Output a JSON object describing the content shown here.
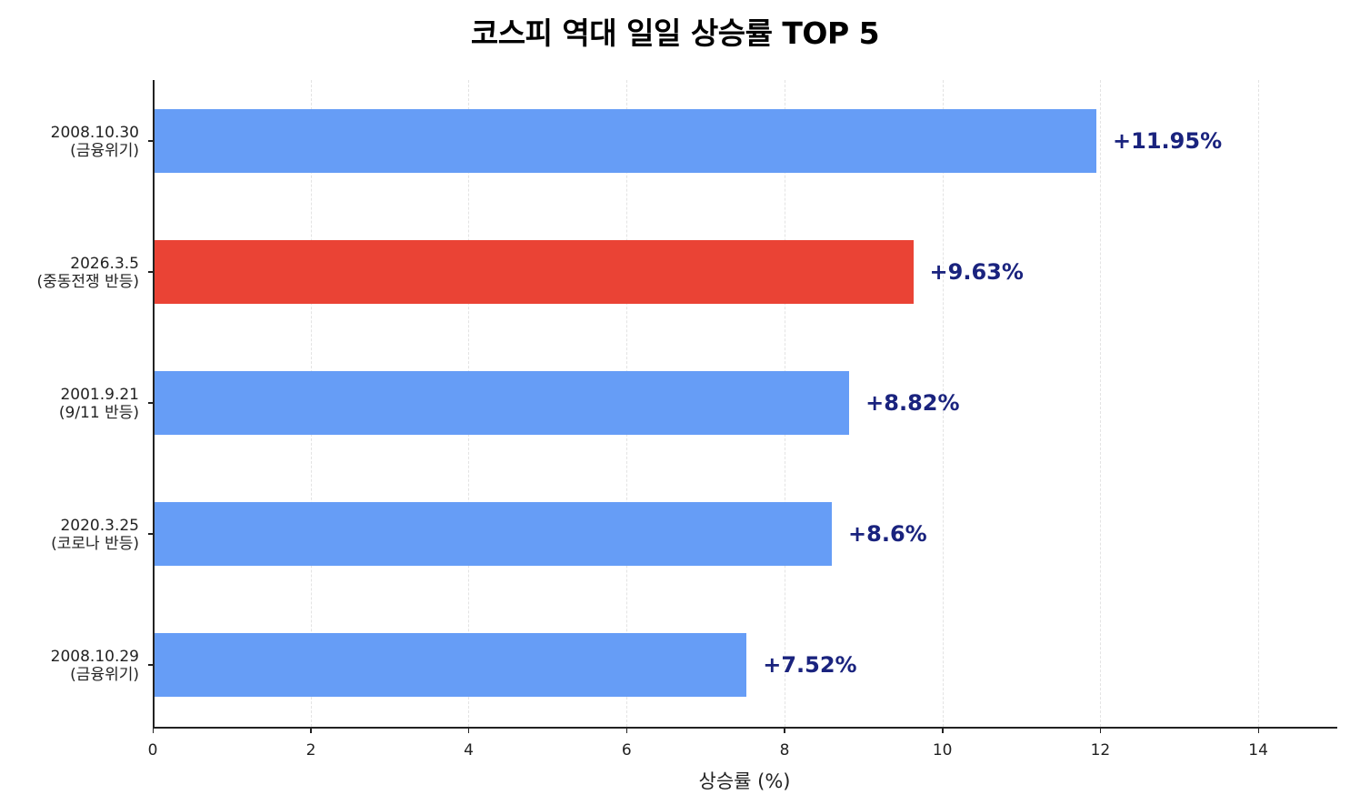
{
  "chart_data": {
    "type": "bar",
    "orientation": "horizontal",
    "title": "코스피 역대 일일 상승률 TOP 5",
    "xlabel": "상승률 (%)",
    "ylabel": "",
    "xlim": [
      0,
      15
    ],
    "xticks": [
      0,
      2,
      4,
      6,
      8,
      10,
      12,
      14
    ],
    "grid": {
      "x": true,
      "y": false,
      "style": "dashed"
    },
    "categories": [
      "2008.10.30\n(금융위기)",
      "2026.3.5\n(중동전쟁 반등)",
      "2001.9.21\n(9/11 반등)",
      "2020.3.25\n(코로나 반등)",
      "2008.10.29\n(금융위기)"
    ],
    "values": [
      11.95,
      9.63,
      8.82,
      8.6,
      7.52
    ],
    "data_labels": [
      "+11.95%",
      "+9.63%",
      "+8.82%",
      "+8.6%",
      "+7.52%"
    ],
    "colors": [
      "#669df6",
      "#ea4335",
      "#669df6",
      "#669df6",
      "#669df6"
    ],
    "highlight_index": 1,
    "label_color": "#1a237e"
  },
  "title": "코스피 역대 일일 상승률 TOP 5",
  "xaxis": {
    "label": "상승률 (%)",
    "ticks": [
      "0",
      "2",
      "4",
      "6",
      "8",
      "10",
      "12",
      "14"
    ]
  },
  "bars": [
    {
      "date": "2008.10.30",
      "event": "(금융위기)",
      "value": 11.95,
      "label": "+11.95%",
      "color": "#669df6"
    },
    {
      "date": "2026.3.5",
      "event": "(중동전쟁 반등)",
      "value": 9.63,
      "label": "+9.63%",
      "color": "#ea4335"
    },
    {
      "date": "2001.9.21",
      "event": "(9/11 반등)",
      "value": 8.82,
      "label": "+8.82%",
      "color": "#669df6"
    },
    {
      "date": "2020.3.25",
      "event": "(코로나 반등)",
      "value": 8.6,
      "label": "+8.6%",
      "color": "#669df6"
    },
    {
      "date": "2008.10.29",
      "event": "(금융위기)",
      "value": 7.52,
      "label": "+7.52%",
      "color": "#669df6"
    }
  ]
}
